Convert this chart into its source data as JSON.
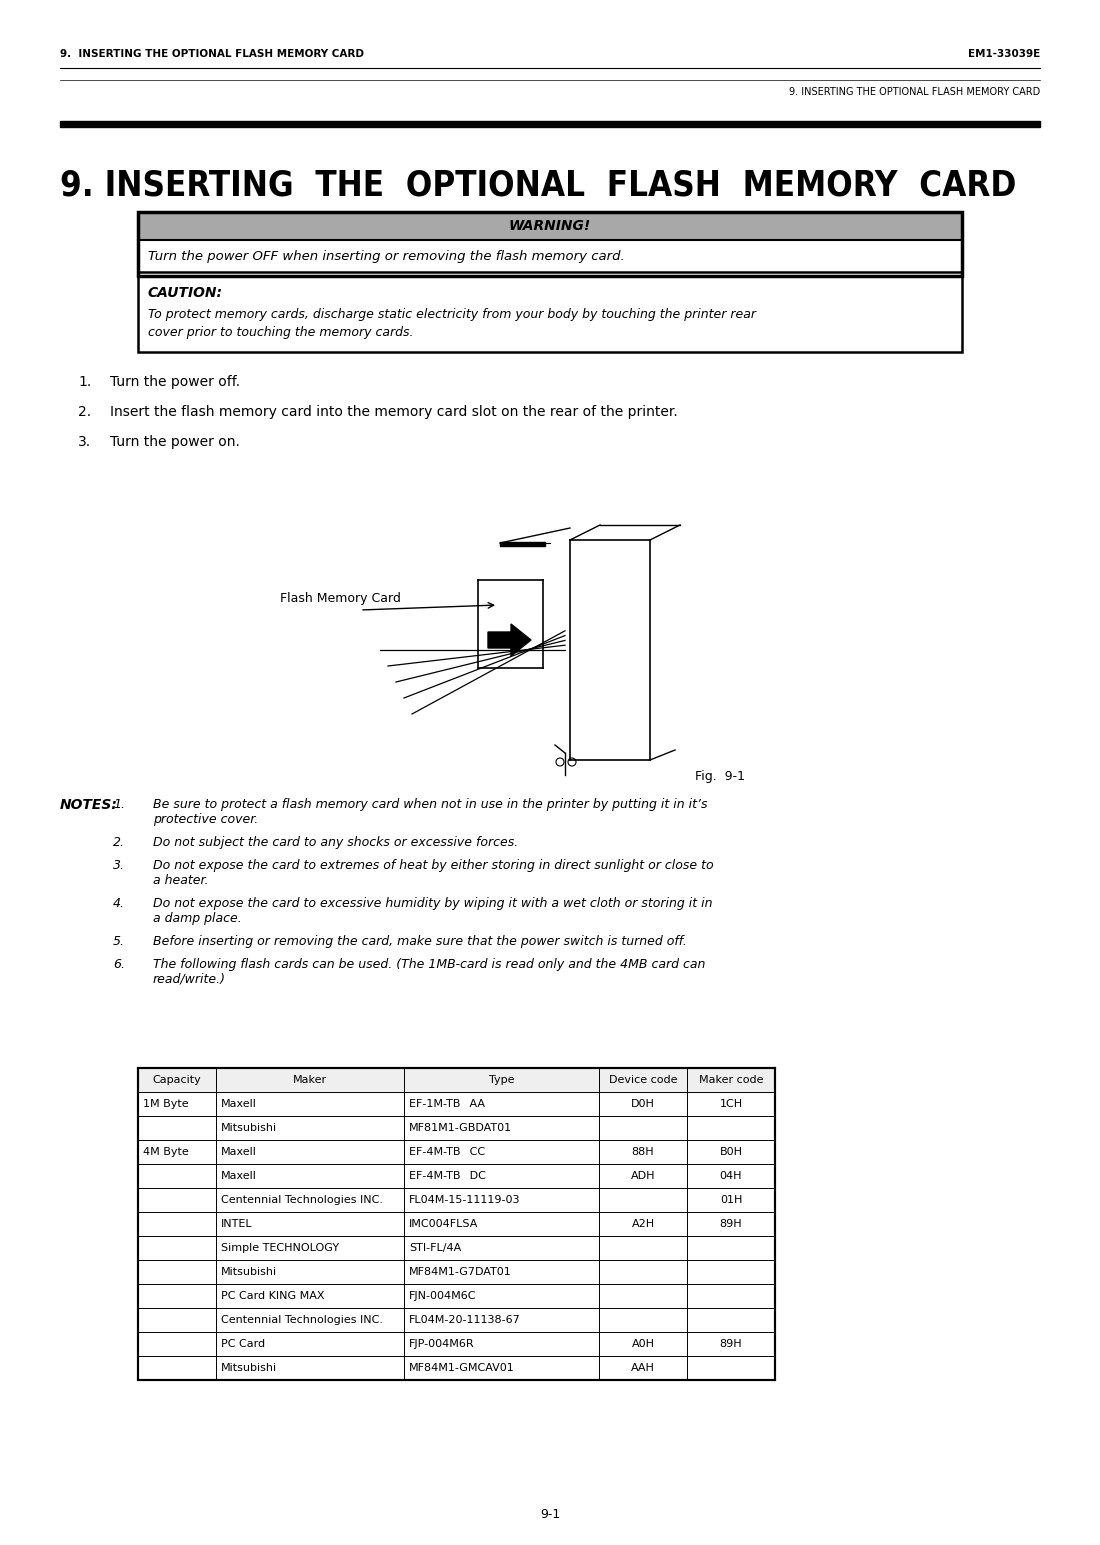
{
  "page_header_left": "9.  INSERTING THE OPTIONAL FLASH MEMORY CARD",
  "page_header_right": "EM1-33039E",
  "page_subheader": "9. INSERTING THE OPTIONAL FLASH MEMORY CARD",
  "section_title": "9. INSERTING  THE  OPTIONAL  FLASH  MEMORY  CARD",
  "warning_label": "WARNING!",
  "warning_text": "Turn the power OFF when inserting or removing the flash memory card.",
  "caution_label": "CAUTION:",
  "caution_line1": "To protect memory cards, discharge static electricity from your body by touching the printer rear",
  "caution_line2": "cover prior to touching the memory cards.",
  "steps": [
    "Turn the power off.",
    "Insert the flash memory card into the memory card slot on the rear of the printer.",
    "Turn the power on."
  ],
  "fig_label": "Fig.  9-1",
  "flash_label": "Flash Memory Card",
  "notes_label": "NOTES:",
  "notes": [
    "Be sure to protect a flash memory card when not in use in the printer by putting it in it’s\n      protective cover.",
    "Do not subject the card to any shocks or excessive forces.",
    "Do not expose the card to extremes of heat by either storing in direct sunlight or close to\n      a heater.",
    "Do not expose the card to excessive humidity by wiping it with a wet cloth or storing it in\n      a damp place.",
    "Before inserting or removing the card, make sure that the power switch is turned off.",
    "The following flash cards can be used. (The 1MB-card is read only and the 4MB card can\n      read/write.)"
  ],
  "table_headers": [
    "Capacity",
    "Maker",
    "Type",
    "Device code",
    "Maker code"
  ],
  "table_col_widths": [
    78,
    188,
    195,
    88,
    88
  ],
  "table_rows": [
    [
      "1M Byte",
      "Maxell",
      "EF-1M-TB  AA ",
      "D0H",
      "1CH"
    ],
    [
      "",
      "Mitsubishi",
      "MF81M1-GBDAT01",
      "",
      ""
    ],
    [
      "4M Byte",
      "Maxell",
      "EF-4M-TB  CC ",
      "88H",
      "B0H"
    ],
    [
      "",
      "Maxell",
      "EF-4M-TB  DC ",
      "ADH",
      "04H"
    ],
    [
      "",
      "Centennial Technologies INC.",
      "FL04M-15-11119-03",
      "",
      "01H"
    ],
    [
      "",
      "INTEL",
      "IMC004FLSA",
      "A2H",
      "89H"
    ],
    [
      "",
      "Simple TECHNOLOGY",
      "STI-FL/4A",
      "",
      ""
    ],
    [
      "",
      "Mitsubishi",
      "MF84M1-G7DAT01",
      "",
      ""
    ],
    [
      "",
      "PC Card KING MAX",
      "FJN-004M6C",
      "",
      ""
    ],
    [
      "",
      "Centennial Technologies INC.",
      "FL04M-20-11138-67",
      "",
      ""
    ],
    [
      "",
      "PC Card",
      "FJP-004M6R",
      "A0H",
      "89H"
    ],
    [
      "",
      "Mitsubishi",
      "MF84M1-GMCAV01",
      "AAH",
      ""
    ]
  ],
  "page_number": "9-1",
  "bg_color": "#ffffff",
  "warning_gray": "#a8a8a8",
  "border_color": "#000000"
}
